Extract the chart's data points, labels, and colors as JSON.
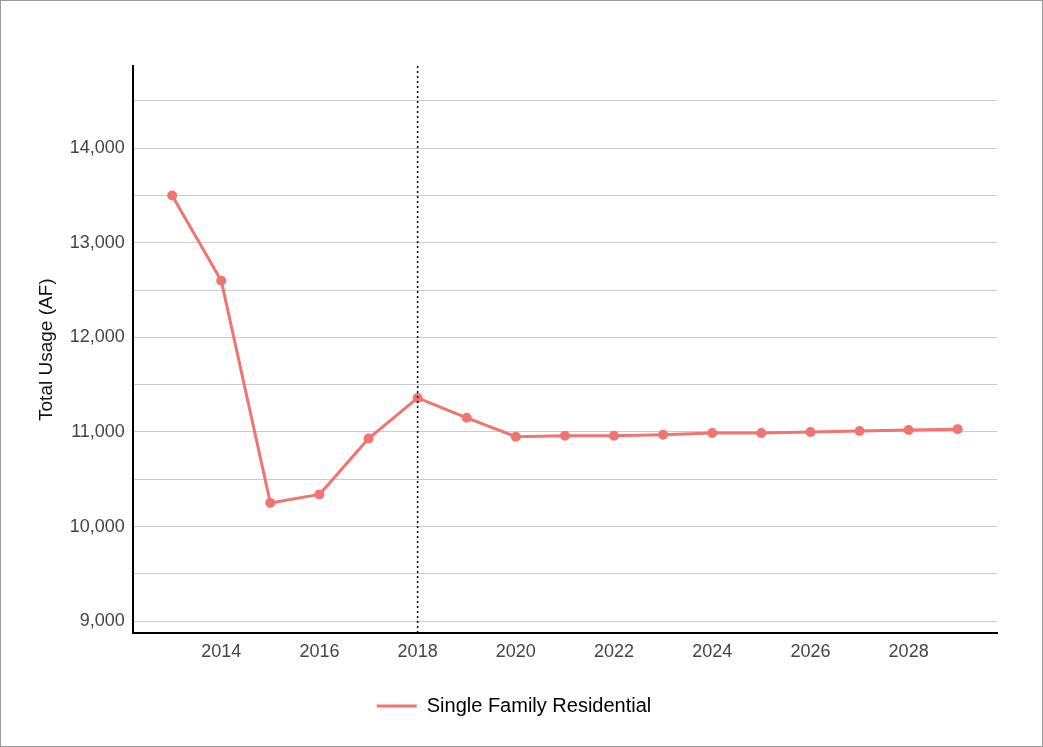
{
  "chart_data": {
    "type": "line",
    "ylabel": "Total Usage (AF)",
    "x": [
      2013,
      2014,
      2015,
      2016,
      2017,
      2018,
      2019,
      2020,
      2021,
      2022,
      2023,
      2024,
      2025,
      2026,
      2027,
      2028,
      2029
    ],
    "series": [
      {
        "name": "Single Family Residential",
        "color": "#f07470",
        "values": [
          13500,
          12600,
          10250,
          10340,
          10930,
          11360,
          11150,
          10950,
          10960,
          10960,
          10970,
          10990,
          10990,
          11000,
          11010,
          11020,
          11030
        ]
      }
    ],
    "xlim": [
      2012.2,
      2029.8
    ],
    "xticks": [
      2014,
      2016,
      2018,
      2020,
      2022,
      2024,
      2026,
      2028
    ],
    "ylim": [
      8870,
      14870
    ],
    "yticks": [
      {
        "value": 9000,
        "label": "9,000"
      },
      {
        "value": 9500,
        "label": null
      },
      {
        "value": 10000,
        "label": "10,000"
      },
      {
        "value": 10500,
        "label": null
      },
      {
        "value": 11000,
        "label": "11,000"
      },
      {
        "value": 11500,
        "label": null
      },
      {
        "value": 12000,
        "label": "12,000"
      },
      {
        "value": 12500,
        "label": null
      },
      {
        "value": 13000,
        "label": "13,000"
      },
      {
        "value": 13500,
        "label": null
      },
      {
        "value": 14000,
        "label": "14,000"
      },
      {
        "value": 14500,
        "label": null
      }
    ],
    "ref_lines": [
      {
        "axis": "x",
        "value": 2018,
        "color": "#000000",
        "line_style": "dotted"
      }
    ],
    "grid": "y",
    "legend": "bottom",
    "marker": "circle",
    "line_style": "solid"
  }
}
